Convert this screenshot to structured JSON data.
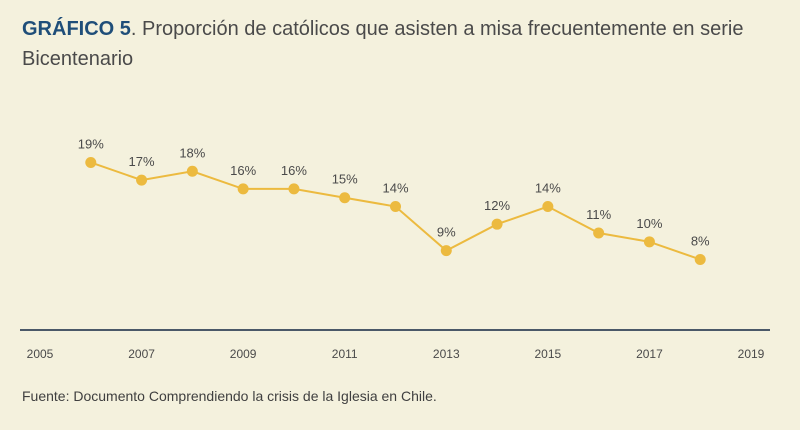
{
  "title": {
    "label": "GRÁFICO 5",
    "text": ". Proporción de católicos que asisten a misa frecuentemente en serie Bicentenario"
  },
  "source": "Fuente: Documento Comprendiendo la crisis de la Iglesia en Chile.",
  "colors": {
    "line": "#ecba3f",
    "axis": "#4a5868",
    "label": "#4a4a4a",
    "title_label": "#1f4e79"
  },
  "chart_data": {
    "type": "line",
    "x_tick_labels": [
      "2005",
      "2007",
      "2009",
      "2011",
      "2013",
      "2015",
      "2017",
      "2019"
    ],
    "xlim": [
      2005,
      2019
    ],
    "ylim": [
      0,
      22
    ],
    "series": [
      {
        "points": [
          {
            "x": 2006,
            "y": 19,
            "label": "19%"
          },
          {
            "x": 2007,
            "y": 17,
            "label": "17%"
          },
          {
            "x": 2008,
            "y": 18,
            "label": "18%"
          },
          {
            "x": 2009,
            "y": 16,
            "label": "16%"
          },
          {
            "x": 2010,
            "y": 16,
            "label": "16%"
          },
          {
            "x": 2011,
            "y": 15,
            "label": "15%"
          },
          {
            "x": 2012,
            "y": 14,
            "label": "14%"
          },
          {
            "x": 2013,
            "y": 9,
            "label": "9%"
          },
          {
            "x": 2014,
            "y": 12,
            "label": "12%"
          },
          {
            "x": 2015,
            "y": 14,
            "label": "14%"
          },
          {
            "x": 2016,
            "y": 11,
            "label": "11%"
          },
          {
            "x": 2017,
            "y": 10,
            "label": "10%"
          },
          {
            "x": 2018,
            "y": 8,
            "label": "8%"
          }
        ]
      }
    ]
  }
}
